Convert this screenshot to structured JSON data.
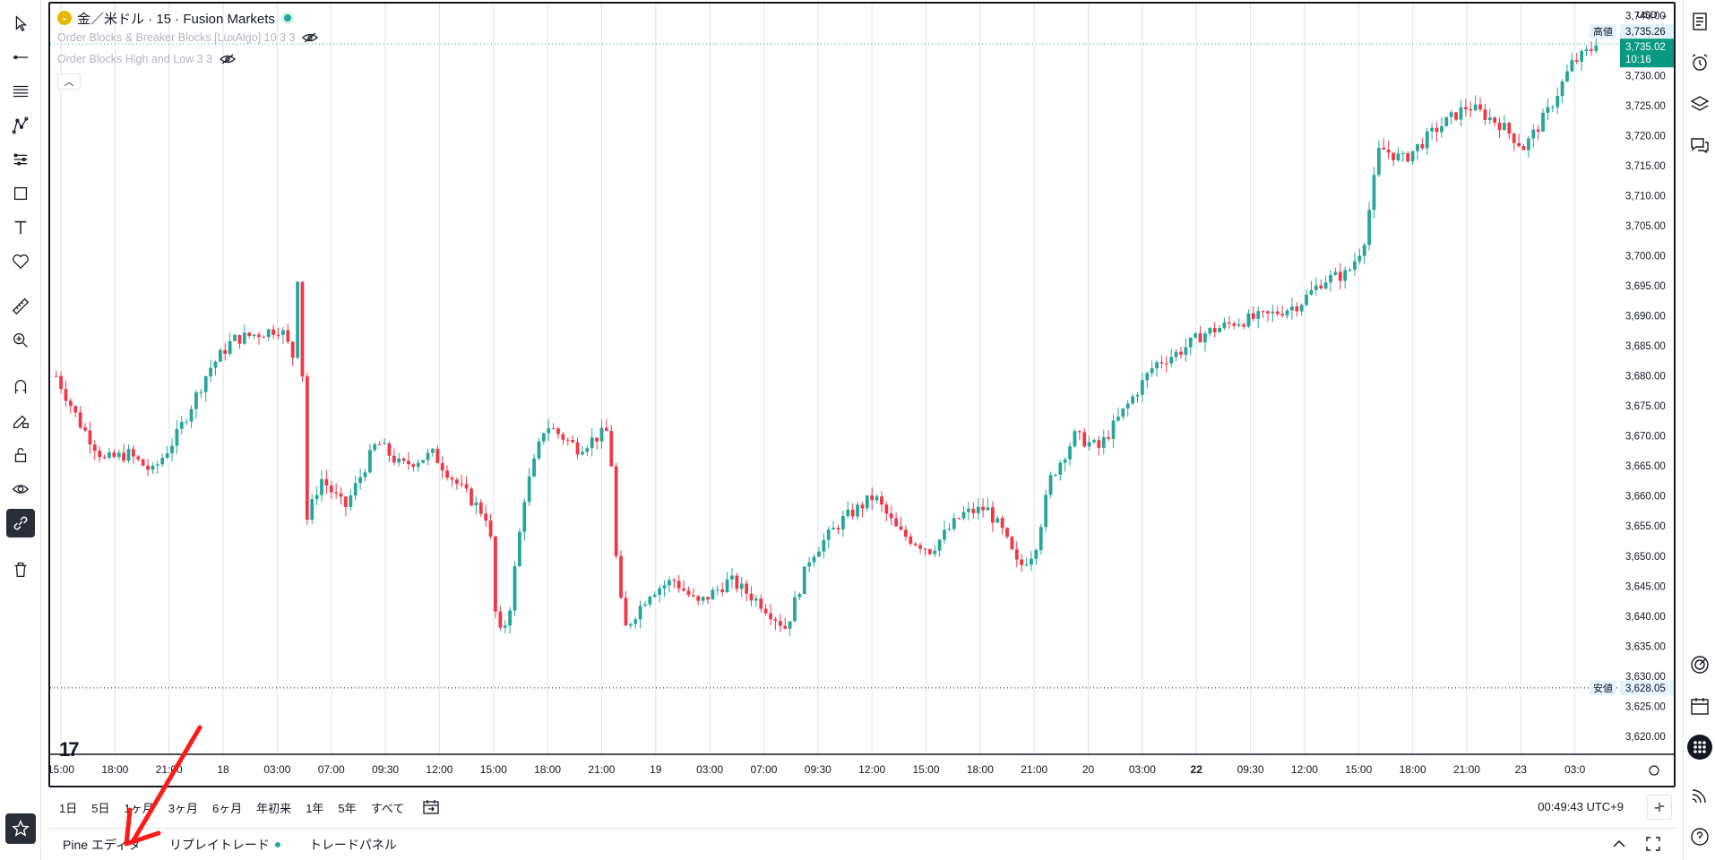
{
  "app": {
    "symbol_title": "金／米ドル · 15 · Fusion Markets",
    "currency": "USD",
    "indicators": [
      {
        "label": "Order Blocks & Breaker Blocks [LuxAlgo] 10 3 3"
      },
      {
        "label": "Order Blocks High and Low 3 3"
      }
    ]
  },
  "left_toolbar": [
    "cursor-icon",
    "trend-line-icon",
    "fib-icon",
    "pattern-icon",
    "forecast-icon",
    "shapes-icon",
    "text-icon",
    "heart-icon",
    "ruler-icon",
    "zoom-in-icon",
    "magnet-icon",
    "pencil-lock-icon",
    "lock-icon",
    "eye-icon",
    "link-icon",
    "trash-icon",
    "star-icon"
  ],
  "right_toolbar": [
    "watchlist-icon",
    "alarm-icon",
    "layers-icon",
    "chat-icon",
    "target-icon",
    "calendar-icon",
    "grid-icon",
    "broadcast-icon",
    "help-icon"
  ],
  "price_axis": {
    "ticks": [
      "3,740.00",
      "3,735.00",
      "3,730.00",
      "3,725.00",
      "3,720.00",
      "3,715.00",
      "3,710.00",
      "3,705.00",
      "3,700.00",
      "3,695.00",
      "3,690.00",
      "3,685.00",
      "3,680.00",
      "3,675.00",
      "3,670.00",
      "3,665.00",
      "3,660.00",
      "3,655.00",
      "3,650.00",
      "3,645.00",
      "3,640.00",
      "3,635.00",
      "3,630.00",
      "3,625.00",
      "3,620.00"
    ],
    "high": {
      "label": "高値",
      "value": "3,735.26"
    },
    "low": {
      "label": "安値",
      "value": "3,628.05"
    },
    "current": {
      "value": "3,735.02",
      "countdown": "10:16"
    }
  },
  "time_axis": {
    "labels": [
      "15:00",
      "18:00",
      "21:00",
      "18",
      "03:00",
      "07:00",
      "09:30",
      "12:00",
      "15:00",
      "18:00",
      "21:00",
      "19",
      "03:00",
      "07:00",
      "09:30",
      "12:00",
      "15:00",
      "18:00",
      "21:00",
      "20",
      "03:00",
      "22",
      "09:30",
      "12:00",
      "15:00",
      "18:00",
      "21:00",
      "23",
      "03:0"
    ],
    "bold_label": "22"
  },
  "chart_data": {
    "type": "candlestick",
    "y_range": [
      3617,
      3742
    ],
    "high": 3735.26,
    "low": 3628.05,
    "last": 3735.02,
    "path_points": [
      [
        0,
        3680
      ],
      [
        15,
        3672
      ],
      [
        30,
        3666
      ],
      [
        45,
        3667
      ],
      [
        60,
        3664
      ],
      [
        75,
        3670
      ],
      [
        95,
        3681
      ],
      [
        110,
        3686
      ],
      [
        125,
        3687
      ],
      [
        140,
        3688
      ],
      [
        148,
        3683
      ],
      [
        152,
        3705
      ],
      [
        155,
        3655
      ],
      [
        165,
        3663
      ],
      [
        180,
        3658
      ],
      [
        200,
        3669
      ],
      [
        215,
        3665
      ],
      [
        235,
        3667
      ],
      [
        250,
        3662
      ],
      [
        270,
        3656
      ],
      [
        275,
        3636
      ],
      [
        282,
        3640
      ],
      [
        292,
        3660
      ],
      [
        305,
        3672
      ],
      [
        325,
        3668
      ],
      [
        345,
        3671
      ],
      [
        350,
        3645
      ],
      [
        355,
        3638
      ],
      [
        370,
        3644
      ],
      [
        385,
        3646
      ],
      [
        400,
        3642
      ],
      [
        420,
        3646
      ],
      [
        440,
        3642
      ],
      [
        455,
        3638
      ],
      [
        470,
        3650
      ],
      [
        490,
        3656
      ],
      [
        510,
        3660
      ],
      [
        525,
        3654
      ],
      [
        545,
        3651
      ],
      [
        565,
        3657
      ],
      [
        580,
        3658
      ],
      [
        590,
        3654
      ],
      [
        600,
        3648
      ],
      [
        610,
        3651
      ],
      [
        620,
        3663
      ],
      [
        635,
        3670
      ],
      [
        650,
        3668
      ],
      [
        665,
        3674
      ],
      [
        685,
        3682
      ],
      [
        700,
        3684
      ],
      [
        715,
        3687
      ],
      [
        735,
        3689
      ],
      [
        755,
        3690
      ],
      [
        775,
        3692
      ],
      [
        790,
        3696
      ],
      [
        805,
        3697
      ],
      [
        815,
        3702
      ],
      [
        825,
        3718
      ],
      [
        840,
        3716
      ],
      [
        860,
        3721
      ],
      [
        880,
        3725
      ],
      [
        900,
        3722
      ],
      [
        915,
        3718
      ],
      [
        930,
        3724
      ],
      [
        945,
        3732
      ],
      [
        960,
        3735
      ]
    ]
  },
  "bottom_bar": {
    "ranges": [
      "1日",
      "5日",
      "1ヶ月",
      "3ヶ月",
      "6ヶ月",
      "年初来",
      "1年",
      "5年",
      "すべて"
    ],
    "clock": "00:49:43 UTC+9"
  },
  "panel_tabs": [
    {
      "label": "Pine エディタ",
      "dot": false
    },
    {
      "label": "リプレイトレード",
      "dot": true
    },
    {
      "label": "トレードパネル",
      "dot": false
    }
  ],
  "colors": {
    "up": "#26a69a",
    "down": "#f23645",
    "grid": "#e0e3eb"
  }
}
